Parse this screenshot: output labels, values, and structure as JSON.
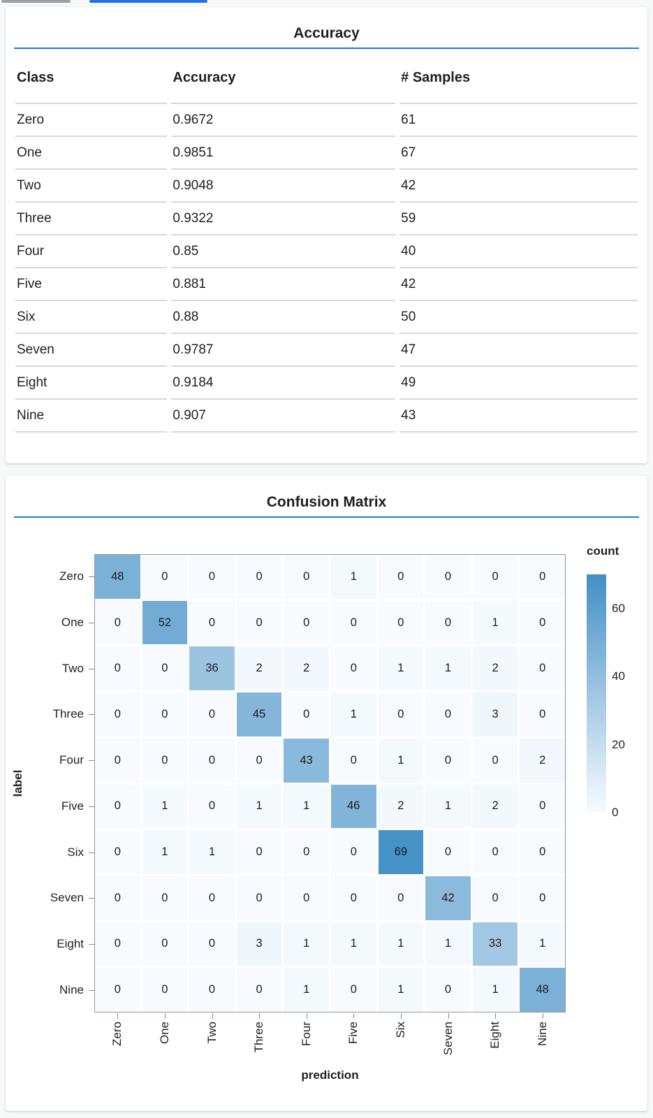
{
  "colors": {
    "accent_blue": "#1a73e8",
    "inactive_tab_gray": "#9aa0a6",
    "divider_gray": "#d9d9d9",
    "heat_min": "#f7fbff",
    "heat_max": "#4691c5"
  },
  "tabs": {
    "inactive_indicator": "",
    "active_indicator": ""
  },
  "chart_data": [
    {
      "type": "table",
      "title": "Accuracy",
      "columns": [
        "Class",
        "Accuracy",
        "# Samples"
      ],
      "rows": [
        [
          "Zero",
          "0.9672",
          "61"
        ],
        [
          "One",
          "0.9851",
          "67"
        ],
        [
          "Two",
          "0.9048",
          "42"
        ],
        [
          "Three",
          "0.9322",
          "59"
        ],
        [
          "Four",
          "0.85",
          "40"
        ],
        [
          "Five",
          "0.881",
          "42"
        ],
        [
          "Six",
          "0.88",
          "50"
        ],
        [
          "Seven",
          "0.9787",
          "47"
        ],
        [
          "Eight",
          "0.9184",
          "49"
        ],
        [
          "Nine",
          "0.907",
          "43"
        ]
      ]
    },
    {
      "type": "heatmap",
      "title": "Confusion Matrix",
      "xlabel": "prediction",
      "ylabel": "label",
      "legend_title": "count",
      "legend_position": "right",
      "x": [
        "Zero",
        "One",
        "Two",
        "Three",
        "Four",
        "Five",
        "Six",
        "Seven",
        "Eight",
        "Nine"
      ],
      "y": [
        "Zero",
        "One",
        "Two",
        "Three",
        "Four",
        "Five",
        "Six",
        "Seven",
        "Eight",
        "Nine"
      ],
      "values": [
        [
          48,
          0,
          0,
          0,
          0,
          1,
          0,
          0,
          0,
          0
        ],
        [
          0,
          52,
          0,
          0,
          0,
          0,
          0,
          0,
          1,
          0
        ],
        [
          0,
          0,
          36,
          2,
          2,
          0,
          1,
          1,
          2,
          0
        ],
        [
          0,
          0,
          0,
          45,
          0,
          1,
          0,
          0,
          3,
          0
        ],
        [
          0,
          0,
          0,
          0,
          43,
          0,
          1,
          0,
          0,
          2
        ],
        [
          0,
          1,
          0,
          1,
          1,
          46,
          2,
          1,
          2,
          0
        ],
        [
          0,
          1,
          1,
          0,
          0,
          0,
          69,
          0,
          0,
          0
        ],
        [
          0,
          0,
          0,
          0,
          0,
          0,
          0,
          42,
          0,
          0
        ],
        [
          0,
          0,
          0,
          3,
          1,
          1,
          1,
          1,
          33,
          1
        ],
        [
          0,
          0,
          0,
          0,
          1,
          0,
          1,
          0,
          1,
          48
        ]
      ],
      "value_min": 0,
      "value_max": 69,
      "colorbar_domain": [
        0,
        70
      ],
      "colorbar_ticks": [
        60,
        40,
        20,
        0
      ],
      "color_range": [
        "#f7fbff",
        "#4691c5"
      ]
    }
  ]
}
